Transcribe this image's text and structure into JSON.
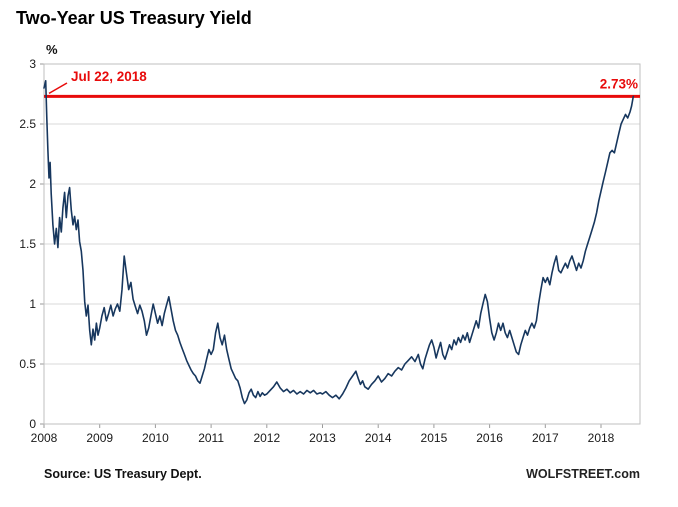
{
  "page": {
    "title": "Two-Year US Treasury Yield",
    "source_note": "Source: US Treasury Dept.",
    "brand": "WOLFSTREET.com"
  },
  "chart_data": {
    "type": "line",
    "title": "Two-Year US Treasury Yield",
    "xlabel": "",
    "ylabel": "%",
    "ylim": [
      0,
      3
    ],
    "xlim": [
      2008,
      2018.7
    ],
    "y_ticks": [
      0,
      0.5,
      1,
      1.5,
      2,
      2.5,
      3
    ],
    "x_ticks": [
      2008,
      2009,
      2010,
      2011,
      2012,
      2013,
      2014,
      2015,
      2016,
      2017,
      2018
    ],
    "grid": "horizontal",
    "legend": "none",
    "line_color": "#17375e",
    "annotations": {
      "date_label": "Jul 22, 2018",
      "value_label": "2.73%",
      "threshold_value": 2.73,
      "color": "#e80b0b"
    },
    "series": [
      {
        "name": "2-year US Treasury yield (%)",
        "points": [
          [
            2008.0,
            2.8
          ],
          [
            2008.03,
            2.86
          ],
          [
            2008.05,
            2.55
          ],
          [
            2008.07,
            2.28
          ],
          [
            2008.09,
            2.05
          ],
          [
            2008.11,
            2.18
          ],
          [
            2008.13,
            1.92
          ],
          [
            2008.16,
            1.66
          ],
          [
            2008.19,
            1.5
          ],
          [
            2008.22,
            1.63
          ],
          [
            2008.25,
            1.47
          ],
          [
            2008.28,
            1.72
          ],
          [
            2008.31,
            1.6
          ],
          [
            2008.34,
            1.8
          ],
          [
            2008.37,
            1.93
          ],
          [
            2008.4,
            1.72
          ],
          [
            2008.43,
            1.9
          ],
          [
            2008.46,
            1.97
          ],
          [
            2008.49,
            1.78
          ],
          [
            2008.52,
            1.66
          ],
          [
            2008.55,
            1.73
          ],
          [
            2008.58,
            1.62
          ],
          [
            2008.61,
            1.7
          ],
          [
            2008.64,
            1.52
          ],
          [
            2008.67,
            1.44
          ],
          [
            2008.7,
            1.28
          ],
          [
            2008.73,
            1.02
          ],
          [
            2008.76,
            0.9
          ],
          [
            2008.79,
            0.99
          ],
          [
            2008.82,
            0.78
          ],
          [
            2008.85,
            0.66
          ],
          [
            2008.88,
            0.79
          ],
          [
            2008.91,
            0.7
          ],
          [
            2008.94,
            0.84
          ],
          [
            2008.97,
            0.74
          ],
          [
            2009.0,
            0.8
          ],
          [
            2009.04,
            0.9
          ],
          [
            2009.08,
            0.97
          ],
          [
            2009.12,
            0.86
          ],
          [
            2009.16,
            0.92
          ],
          [
            2009.2,
            0.99
          ],
          [
            2009.24,
            0.9
          ],
          [
            2009.28,
            0.96
          ],
          [
            2009.32,
            1.0
          ],
          [
            2009.36,
            0.94
          ],
          [
            2009.4,
            1.12
          ],
          [
            2009.44,
            1.4
          ],
          [
            2009.48,
            1.26
          ],
          [
            2009.52,
            1.12
          ],
          [
            2009.56,
            1.18
          ],
          [
            2009.6,
            1.04
          ],
          [
            2009.64,
            0.98
          ],
          [
            2009.68,
            0.92
          ],
          [
            2009.72,
            0.99
          ],
          [
            2009.76,
            0.94
          ],
          [
            2009.8,
            0.86
          ],
          [
            2009.84,
            0.74
          ],
          [
            2009.88,
            0.8
          ],
          [
            2009.92,
            0.9
          ],
          [
            2009.96,
            1.0
          ],
          [
            2010.0,
            0.92
          ],
          [
            2010.04,
            0.84
          ],
          [
            2010.08,
            0.9
          ],
          [
            2010.12,
            0.82
          ],
          [
            2010.16,
            0.92
          ],
          [
            2010.2,
            0.99
          ],
          [
            2010.24,
            1.06
          ],
          [
            2010.28,
            0.96
          ],
          [
            2010.32,
            0.86
          ],
          [
            2010.36,
            0.78
          ],
          [
            2010.4,
            0.74
          ],
          [
            2010.44,
            0.68
          ],
          [
            2010.48,
            0.63
          ],
          [
            2010.52,
            0.58
          ],
          [
            2010.56,
            0.53
          ],
          [
            2010.6,
            0.49
          ],
          [
            2010.64,
            0.45
          ],
          [
            2010.68,
            0.42
          ],
          [
            2010.72,
            0.4
          ],
          [
            2010.76,
            0.36
          ],
          [
            2010.8,
            0.34
          ],
          [
            2010.84,
            0.4
          ],
          [
            2010.88,
            0.46
          ],
          [
            2010.92,
            0.54
          ],
          [
            2010.96,
            0.62
          ],
          [
            2011.0,
            0.58
          ],
          [
            2011.04,
            0.62
          ],
          [
            2011.08,
            0.76
          ],
          [
            2011.12,
            0.84
          ],
          [
            2011.16,
            0.72
          ],
          [
            2011.2,
            0.66
          ],
          [
            2011.24,
            0.74
          ],
          [
            2011.28,
            0.62
          ],
          [
            2011.32,
            0.54
          ],
          [
            2011.36,
            0.46
          ],
          [
            2011.4,
            0.42
          ],
          [
            2011.44,
            0.38
          ],
          [
            2011.48,
            0.36
          ],
          [
            2011.52,
            0.3
          ],
          [
            2011.56,
            0.22
          ],
          [
            2011.6,
            0.17
          ],
          [
            2011.64,
            0.2
          ],
          [
            2011.68,
            0.26
          ],
          [
            2011.72,
            0.29
          ],
          [
            2011.76,
            0.24
          ],
          [
            2011.8,
            0.22
          ],
          [
            2011.84,
            0.27
          ],
          [
            2011.88,
            0.23
          ],
          [
            2011.92,
            0.26
          ],
          [
            2011.96,
            0.24
          ],
          [
            2012.0,
            0.25
          ],
          [
            2012.06,
            0.28
          ],
          [
            2012.12,
            0.31
          ],
          [
            2012.18,
            0.35
          ],
          [
            2012.24,
            0.3
          ],
          [
            2012.3,
            0.27
          ],
          [
            2012.36,
            0.29
          ],
          [
            2012.42,
            0.26
          ],
          [
            2012.48,
            0.28
          ],
          [
            2012.54,
            0.25
          ],
          [
            2012.6,
            0.27
          ],
          [
            2012.66,
            0.25
          ],
          [
            2012.72,
            0.28
          ],
          [
            2012.78,
            0.26
          ],
          [
            2012.84,
            0.28
          ],
          [
            2012.9,
            0.25
          ],
          [
            2012.96,
            0.26
          ],
          [
            2013.0,
            0.25
          ],
          [
            2013.06,
            0.27
          ],
          [
            2013.12,
            0.24
          ],
          [
            2013.18,
            0.22
          ],
          [
            2013.24,
            0.24
          ],
          [
            2013.3,
            0.21
          ],
          [
            2013.36,
            0.25
          ],
          [
            2013.42,
            0.3
          ],
          [
            2013.48,
            0.36
          ],
          [
            2013.54,
            0.4
          ],
          [
            2013.6,
            0.44
          ],
          [
            2013.64,
            0.38
          ],
          [
            2013.68,
            0.33
          ],
          [
            2013.72,
            0.36
          ],
          [
            2013.76,
            0.31
          ],
          [
            2013.82,
            0.29
          ],
          [
            2013.88,
            0.33
          ],
          [
            2013.94,
            0.36
          ],
          [
            2014.0,
            0.4
          ],
          [
            2014.06,
            0.35
          ],
          [
            2014.12,
            0.38
          ],
          [
            2014.18,
            0.42
          ],
          [
            2014.24,
            0.4
          ],
          [
            2014.3,
            0.44
          ],
          [
            2014.36,
            0.47
          ],
          [
            2014.42,
            0.45
          ],
          [
            2014.48,
            0.5
          ],
          [
            2014.54,
            0.53
          ],
          [
            2014.6,
            0.56
          ],
          [
            2014.66,
            0.52
          ],
          [
            2014.72,
            0.58
          ],
          [
            2014.76,
            0.5
          ],
          [
            2014.8,
            0.46
          ],
          [
            2014.84,
            0.54
          ],
          [
            2014.88,
            0.6
          ],
          [
            2014.92,
            0.66
          ],
          [
            2014.96,
            0.7
          ],
          [
            2015.0,
            0.64
          ],
          [
            2015.04,
            0.55
          ],
          [
            2015.08,
            0.62
          ],
          [
            2015.12,
            0.68
          ],
          [
            2015.16,
            0.58
          ],
          [
            2015.2,
            0.54
          ],
          [
            2015.24,
            0.6
          ],
          [
            2015.28,
            0.66
          ],
          [
            2015.32,
            0.62
          ],
          [
            2015.36,
            0.7
          ],
          [
            2015.4,
            0.66
          ],
          [
            2015.44,
            0.72
          ],
          [
            2015.48,
            0.68
          ],
          [
            2015.52,
            0.74
          ],
          [
            2015.56,
            0.7
          ],
          [
            2015.6,
            0.76
          ],
          [
            2015.64,
            0.68
          ],
          [
            2015.68,
            0.74
          ],
          [
            2015.72,
            0.8
          ],
          [
            2015.76,
            0.86
          ],
          [
            2015.8,
            0.8
          ],
          [
            2015.84,
            0.92
          ],
          [
            2015.88,
            1.0
          ],
          [
            2015.92,
            1.08
          ],
          [
            2015.96,
            1.02
          ],
          [
            2016.0,
            0.88
          ],
          [
            2016.04,
            0.76
          ],
          [
            2016.08,
            0.7
          ],
          [
            2016.12,
            0.76
          ],
          [
            2016.16,
            0.84
          ],
          [
            2016.2,
            0.78
          ],
          [
            2016.24,
            0.84
          ],
          [
            2016.28,
            0.76
          ],
          [
            2016.32,
            0.72
          ],
          [
            2016.36,
            0.78
          ],
          [
            2016.4,
            0.72
          ],
          [
            2016.44,
            0.66
          ],
          [
            2016.48,
            0.6
          ],
          [
            2016.52,
            0.58
          ],
          [
            2016.56,
            0.66
          ],
          [
            2016.6,
            0.72
          ],
          [
            2016.64,
            0.78
          ],
          [
            2016.68,
            0.74
          ],
          [
            2016.72,
            0.8
          ],
          [
            2016.76,
            0.84
          ],
          [
            2016.8,
            0.8
          ],
          [
            2016.84,
            0.86
          ],
          [
            2016.88,
            1.0
          ],
          [
            2016.92,
            1.12
          ],
          [
            2016.96,
            1.22
          ],
          [
            2017.0,
            1.18
          ],
          [
            2017.04,
            1.22
          ],
          [
            2017.08,
            1.16
          ],
          [
            2017.12,
            1.26
          ],
          [
            2017.16,
            1.34
          ],
          [
            2017.2,
            1.4
          ],
          [
            2017.24,
            1.28
          ],
          [
            2017.28,
            1.26
          ],
          [
            2017.32,
            1.3
          ],
          [
            2017.36,
            1.34
          ],
          [
            2017.4,
            1.3
          ],
          [
            2017.44,
            1.36
          ],
          [
            2017.48,
            1.4
          ],
          [
            2017.52,
            1.34
          ],
          [
            2017.56,
            1.28
          ],
          [
            2017.6,
            1.34
          ],
          [
            2017.64,
            1.3
          ],
          [
            2017.68,
            1.36
          ],
          [
            2017.72,
            1.44
          ],
          [
            2017.76,
            1.5
          ],
          [
            2017.8,
            1.56
          ],
          [
            2017.84,
            1.62
          ],
          [
            2017.88,
            1.68
          ],
          [
            2017.92,
            1.76
          ],
          [
            2017.96,
            1.86
          ],
          [
            2018.0,
            1.94
          ],
          [
            2018.04,
            2.02
          ],
          [
            2018.08,
            2.1
          ],
          [
            2018.12,
            2.18
          ],
          [
            2018.16,
            2.26
          ],
          [
            2018.2,
            2.28
          ],
          [
            2018.24,
            2.26
          ],
          [
            2018.28,
            2.34
          ],
          [
            2018.32,
            2.42
          ],
          [
            2018.36,
            2.5
          ],
          [
            2018.4,
            2.54
          ],
          [
            2018.44,
            2.58
          ],
          [
            2018.48,
            2.55
          ],
          [
            2018.52,
            2.6
          ],
          [
            2018.55,
            2.65
          ],
          [
            2018.58,
            2.73
          ]
        ]
      }
    ]
  }
}
